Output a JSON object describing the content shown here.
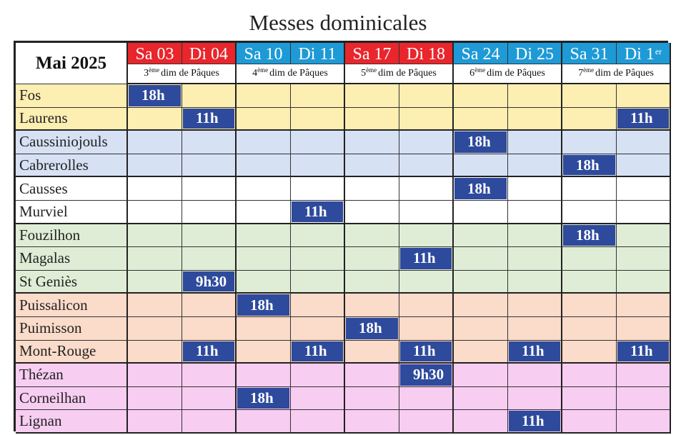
{
  "title": "Messes dominicales",
  "corner": "Mai 2025",
  "days": [
    {
      "label": "Sa 03",
      "color": "red"
    },
    {
      "label": "Di 04",
      "color": "red"
    },
    {
      "label": "Sa 10",
      "color": "blue"
    },
    {
      "label": "Di 11",
      "color": "blue"
    },
    {
      "label": "Sa 17",
      "color": "red"
    },
    {
      "label": "Di 18",
      "color": "red"
    },
    {
      "label": "Sa 24",
      "color": "blue"
    },
    {
      "label": "Di 25",
      "color": "blue"
    },
    {
      "label": "Sa 31",
      "color": "blue"
    },
    {
      "label": "Di 1",
      "sup": "er",
      "color": "blue"
    }
  ],
  "sundays": [
    {
      "ord": "3",
      "sup": "ème",
      "text": "dim de Pâques"
    },
    {
      "ord": "4",
      "sup": "ème",
      "text": "dim de Pâques"
    },
    {
      "ord": "5",
      "sup": "ème",
      "text": "dim de Pâques"
    },
    {
      "ord": "6",
      "sup": "ème",
      "text": "dim de Pâques"
    },
    {
      "ord": "7",
      "sup": "ème",
      "text": "dim de Pâques"
    }
  ],
  "colors": {
    "red": "#e8262c",
    "blue": "#1e9ad6",
    "mass": "#2e4a9c",
    "yellow": "#fdeeb2",
    "lightblue": "#d6e1f4",
    "white": "#ffffff",
    "green": "#dfedd6",
    "peach": "#fbdbc9",
    "pink": "#f7cdf1"
  },
  "rows": [
    {
      "place": "Fos",
      "group": "yellow",
      "times": [
        "18h",
        "",
        "",
        "",
        "",
        "",
        "",
        "",
        "",
        ""
      ]
    },
    {
      "place": "Laurens",
      "group": "yellow",
      "times": [
        "",
        "11h",
        "",
        "",
        "",
        "",
        "",
        "",
        "",
        "11h"
      ]
    },
    {
      "place": "Caussiniojouls",
      "group": "blue",
      "times": [
        "",
        "",
        "",
        "",
        "",
        "",
        "18h",
        "",
        "",
        ""
      ]
    },
    {
      "place": "Cabrerolles",
      "group": "blue",
      "times": [
        "",
        "",
        "",
        "",
        "",
        "",
        "",
        "",
        "18h",
        ""
      ]
    },
    {
      "place": "Causses",
      "group": "white",
      "times": [
        "",
        "",
        "",
        "",
        "",
        "",
        "18h",
        "",
        "",
        ""
      ]
    },
    {
      "place": "Murviel",
      "group": "white",
      "times": [
        "",
        "",
        "",
        "11h",
        "",
        "",
        "",
        "",
        "",
        ""
      ]
    },
    {
      "place": "Fouzilhon",
      "group": "green",
      "times": [
        "",
        "",
        "",
        "",
        "",
        "",
        "",
        "",
        "18h",
        ""
      ]
    },
    {
      "place": "Magalas",
      "group": "green",
      "times": [
        "",
        "",
        "",
        "",
        "",
        "11h",
        "",
        "",
        "",
        ""
      ]
    },
    {
      "place": "St Geniès",
      "group": "green",
      "times": [
        "",
        "9h30",
        "",
        "",
        "",
        "",
        "",
        "",
        "",
        ""
      ]
    },
    {
      "place": "Puissalicon",
      "group": "peach",
      "times": [
        "",
        "",
        "18h",
        "",
        "",
        "",
        "",
        "",
        "",
        ""
      ]
    },
    {
      "place": "Puimisson",
      "group": "peach",
      "times": [
        "",
        "",
        "",
        "",
        "18h",
        "",
        "",
        "",
        "",
        ""
      ]
    },
    {
      "place": "Mont-Rouge",
      "group": "peach",
      "times": [
        "",
        "11h",
        "",
        "11h",
        "",
        "11h",
        "",
        "11h",
        "",
        "11h"
      ]
    },
    {
      "place": "Thézan",
      "group": "pink",
      "times": [
        "",
        "",
        "",
        "",
        "",
        "9h30",
        "",
        "",
        "",
        ""
      ]
    },
    {
      "place": "Corneilhan",
      "group": "pink",
      "times": [
        "",
        "",
        "18h",
        "",
        "",
        "",
        "",
        "",
        "",
        ""
      ]
    },
    {
      "place": "Lignan",
      "group": "pink",
      "times": [
        "",
        "",
        "",
        "",
        "",
        "",
        "",
        "11h",
        "",
        ""
      ]
    }
  ]
}
